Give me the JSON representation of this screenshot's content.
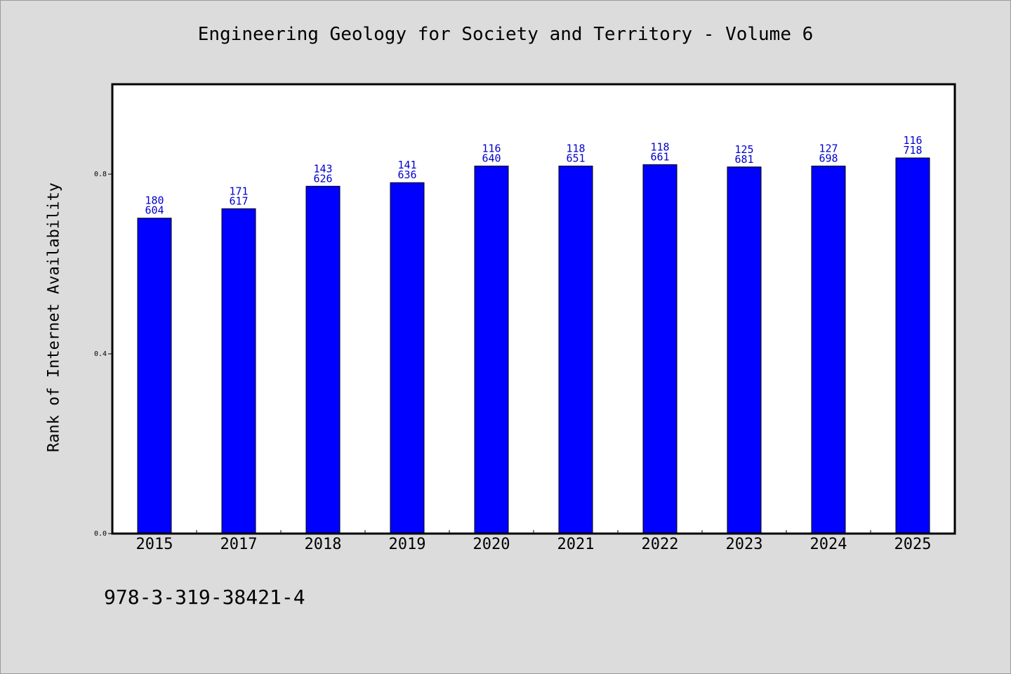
{
  "chart_data": {
    "type": "bar",
    "title": "Engineering Geology for Society and Territory - Volume 6",
    "ylabel": "Rank of Internet Availability",
    "xlabel": "",
    "ylim": [
      0,
      1.0
    ],
    "yticks": [
      "0.0",
      "0.4",
      "0.8"
    ],
    "categories": [
      "2015",
      "2017",
      "2018",
      "2019",
      "2020",
      "2021",
      "2022",
      "2023",
      "2024",
      "2025"
    ],
    "values": [
      0.702,
      0.723,
      0.773,
      0.781,
      0.818,
      0.818,
      0.821,
      0.816,
      0.818,
      0.836
    ],
    "labels_top": [
      "180",
      "171",
      "143",
      "141",
      "116",
      "118",
      "118",
      "125",
      "127",
      "116"
    ],
    "labels_bottom": [
      "604",
      "617",
      "626",
      "636",
      "640",
      "651",
      "661",
      "681",
      "698",
      "718"
    ],
    "bar_color": "#0000ff",
    "label_color": "#0000cc",
    "grid": false
  },
  "footer": {
    "isbn": "978-3-319-38421-4"
  }
}
